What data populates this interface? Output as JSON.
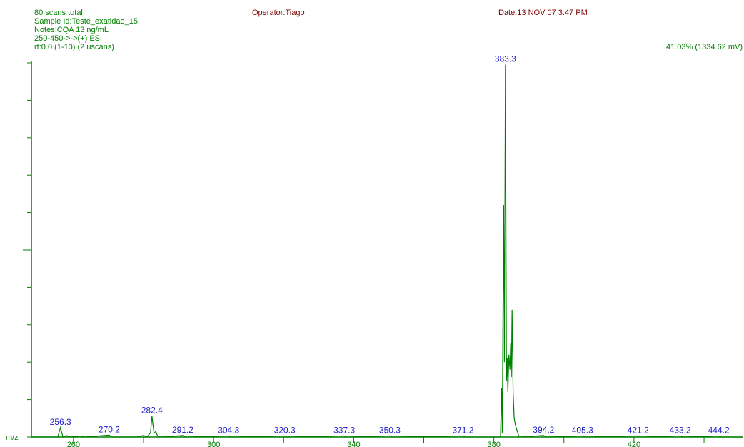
{
  "chart_data": {
    "type": "line",
    "header_left": [
      "80 scans total",
      "Sample Id:Teste_exatidao_15",
      "Notes:CQA 13 ng/mL",
      "250-450->->(+)  ESI",
      "rt:0.0 (1-10) (2 uscans)"
    ],
    "operator": "Operator:Tiago",
    "date": "Date:13 NOV 07  3:47 PM",
    "scale_note": "41.03% (1334.62 mV)",
    "x_label": "m/z",
    "color": "#008000",
    "label_color": "#1a1acc",
    "x": [
      248,
      255.5,
      256.3,
      257,
      258,
      259,
      262,
      263,
      270.2,
      271,
      278,
      280,
      281,
      282,
      282.4,
      283,
      283.5,
      284,
      285,
      291.2,
      292,
      304.3,
      305,
      320.3,
      321,
      337.3,
      338,
      350.3,
      351,
      371.2,
      372,
      381.9,
      382.2,
      382.4,
      382.8,
      383.0,
      383.3,
      383.6,
      383.8,
      384.0,
      384.3,
      384.6,
      384.8,
      385.0,
      385.2,
      385.5,
      385.8,
      386.2,
      386.7,
      387.2,
      394.2,
      395,
      405.3,
      406,
      421.2,
      422,
      433.2,
      434,
      444.2,
      445,
      451
    ],
    "values": [
      0,
      0,
      2.5,
      0,
      0.4,
      0,
      0.3,
      0,
      0.5,
      0,
      0,
      0.4,
      0,
      1.2,
      5.6,
      1,
      1.5,
      0.3,
      0,
      0.4,
      0,
      0.3,
      0,
      0.3,
      0,
      0.3,
      0,
      0.3,
      0,
      0.3,
      0,
      0,
      13,
      1,
      62,
      20,
      99.5,
      15,
      21,
      12,
      22,
      18,
      25,
      16,
      34,
      12,
      5,
      3,
      1.5,
      0,
      0.4,
      0,
      0.3,
      0,
      0.3,
      0,
      0.3,
      0,
      0.3,
      0,
      0
    ],
    "peak_labels": [
      256.3,
      270.2,
      282.4,
      291.2,
      304.3,
      320.3,
      337.3,
      350.3,
      371.2,
      383.3,
      394.2,
      405.3,
      421.2,
      433.2,
      444.2
    ],
    "xlim": [
      248,
      451
    ],
    "ylim": [
      0,
      100
    ],
    "xticks": [
      260,
      300,
      340,
      380,
      420
    ],
    "xminorticks": [
      280,
      320,
      360,
      400,
      440
    ],
    "yticks": [
      0,
      10,
      20,
      30,
      40,
      50,
      60,
      70,
      80,
      90,
      100
    ]
  }
}
